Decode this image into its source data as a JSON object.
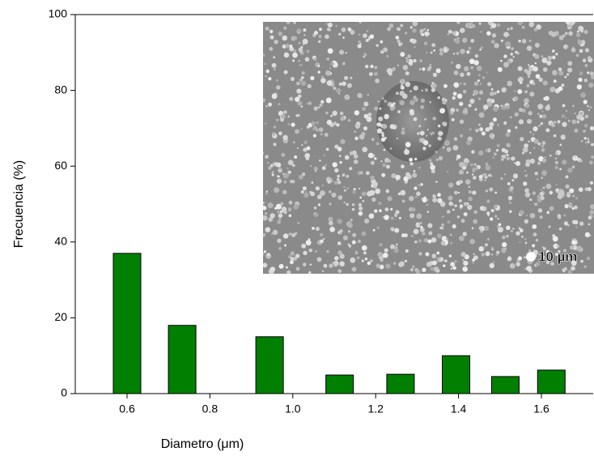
{
  "chart_data": {
    "type": "bar",
    "x_label": "Diametro (μm)",
    "y_label": "Frecuencia (%)",
    "x": [
      0.6,
      0.733,
      0.944,
      1.113,
      1.26,
      1.394,
      1.513,
      1.624
    ],
    "values": [
      37,
      18,
      15,
      4.9,
      5.1,
      10,
      4.5,
      6.2
    ],
    "color": "#007f00",
    "xlim": [
      0.475,
      1.725
    ],
    "xticks": [
      0.6,
      0.8,
      {
        "value": 1,
        "label": "1.0"
      },
      1.2,
      1.4,
      1.6
    ],
    "ylim": [
      0,
      100
    ],
    "yticks": [
      0,
      20,
      40,
      60,
      80,
      100
    ],
    "inset_label": "10 µm"
  }
}
